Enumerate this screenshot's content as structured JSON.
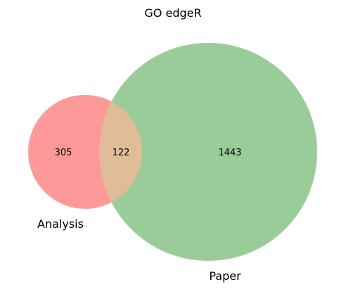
{
  "chart_data": {
    "type": "venn",
    "title": "GO edgeR",
    "sets": [
      {
        "name": "Analysis",
        "color": "#ff9999"
      },
      {
        "name": "Paper",
        "color": "#99cc99"
      }
    ],
    "intersection_color": "#e0bc99",
    "regions": {
      "analysis_only": "305",
      "both": "122",
      "paper_only": "1443"
    }
  }
}
